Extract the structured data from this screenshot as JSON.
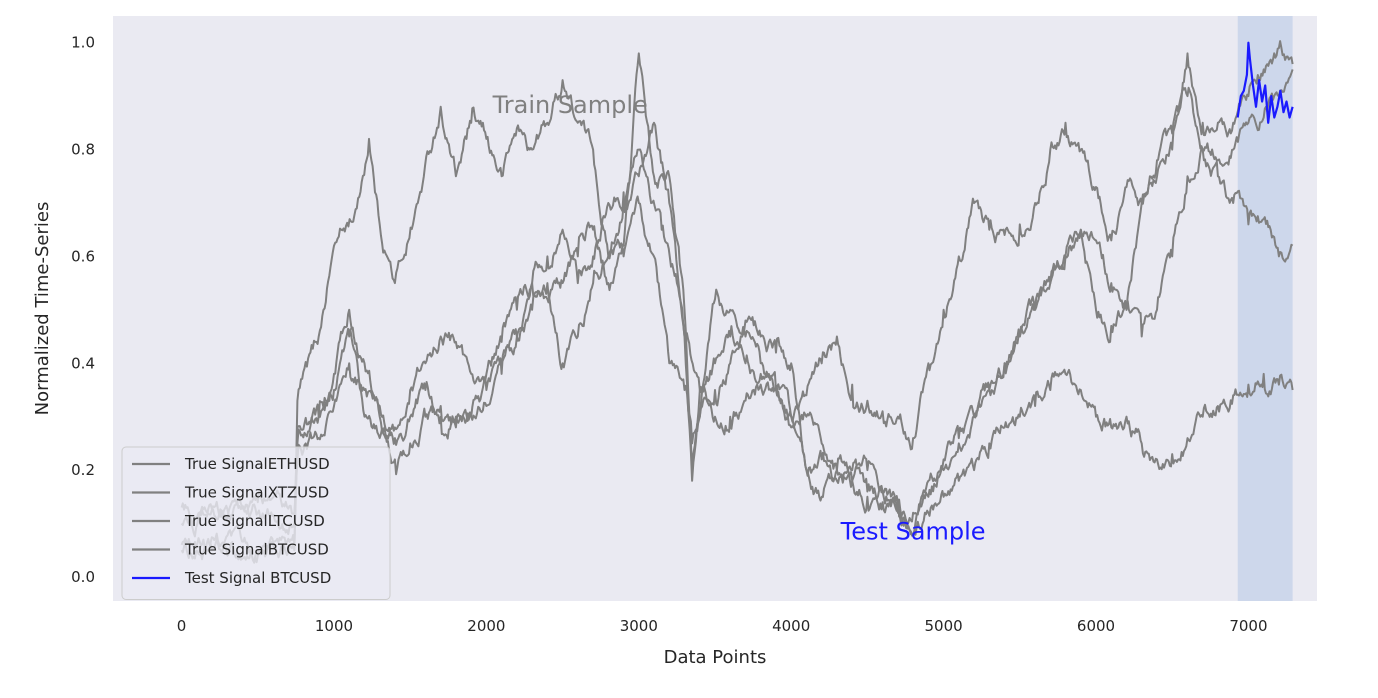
{
  "chart_data": {
    "type": "line",
    "title": "",
    "xlabel": "Data Points",
    "ylabel": "Normalized Time-Series",
    "xlim": [
      -450,
      7450
    ],
    "ylim": [
      -0.045,
      1.05
    ],
    "xticks": [
      0,
      1000,
      2000,
      3000,
      4000,
      5000,
      6000,
      7000
    ],
    "yticks": [
      0.0,
      0.2,
      0.4,
      0.6,
      0.8,
      1.0
    ],
    "xtick_labels": [
      "0",
      "1000",
      "2000",
      "3000",
      "4000",
      "5000",
      "6000",
      "7000"
    ],
    "ytick_labels": [
      "0.0",
      "0.2",
      "0.4",
      "0.6",
      "0.8",
      "1.0"
    ],
    "grid": false,
    "background": "#eaeaf2",
    "legend_position": "lower-left",
    "test_region": {
      "x_start": 6930,
      "x_end": 7290,
      "color": "#c8d4ea"
    },
    "annotations": [
      {
        "text": "Train Sample",
        "x": 2550,
        "y": 0.88,
        "color": "#808080"
      },
      {
        "text": "Test Sample",
        "x": 4800,
        "y": 0.085,
        "color": "#1a1aff"
      }
    ],
    "series": [
      {
        "name": "True SignalETHUSD",
        "color": "#808080",
        "x": [
          0,
          500,
          740,
          760,
          900,
          1000,
          1150,
          1230,
          1300,
          1400,
          1550,
          1700,
          1800,
          1900,
          2000,
          2100,
          2200,
          2300,
          2400,
          2500,
          2600,
          2700,
          2800,
          2900,
          3000,
          3050,
          3150,
          3250,
          3300,
          3400,
          3500,
          3600,
          3700,
          3800,
          3900,
          4000,
          4100,
          4200,
          4300,
          4400,
          4500,
          4600,
          4700,
          4800,
          4900,
          5000,
          5100,
          5200,
          5300,
          5400,
          5500,
          5600,
          5700,
          5800,
          5900,
          6000,
          6100,
          6200,
          6300,
          6400,
          6500,
          6600,
          6700,
          6800,
          6900,
          7000,
          7100,
          7200,
          7290
        ],
        "y": [
          0.05,
          0.04,
          0.05,
          0.33,
          0.45,
          0.62,
          0.69,
          0.82,
          0.66,
          0.55,
          0.7,
          0.88,
          0.75,
          0.85,
          0.82,
          0.75,
          0.84,
          0.8,
          0.85,
          0.93,
          0.85,
          0.8,
          0.6,
          0.7,
          0.8,
          0.75,
          0.65,
          0.55,
          0.45,
          0.35,
          0.3,
          0.3,
          0.33,
          0.36,
          0.35,
          0.3,
          0.34,
          0.4,
          0.45,
          0.36,
          0.33,
          0.31,
          0.3,
          0.26,
          0.4,
          0.5,
          0.6,
          0.7,
          0.65,
          0.64,
          0.66,
          0.7,
          0.8,
          0.85,
          0.8,
          0.73,
          0.63,
          0.73,
          0.7,
          0.78,
          0.83,
          0.9,
          0.8,
          0.75,
          0.7,
          0.66,
          0.67,
          0.6,
          0.62
        ]
      },
      {
        "name": "True SignalXTZUSD",
        "color": "#808080",
        "x": [
          0,
          500,
          740,
          760,
          900,
          1000,
          1100,
          1200,
          1300,
          1400,
          1500,
          1600,
          1700,
          1800,
          1900,
          2000,
          2100,
          2200,
          2300,
          2400,
          2500,
          2600,
          2700,
          2800,
          2900,
          3000,
          3100,
          3200,
          3300,
          3350,
          3400,
          3500,
          3600,
          3700,
          3800,
          3900,
          4000,
          4100,
          4200,
          4300,
          4400,
          4500,
          4600,
          4700,
          4800,
          4900,
          5000,
          5100,
          5200,
          5300,
          5400,
          5500,
          5600,
          5700,
          5800,
          5900,
          6000,
          6100,
          6200,
          6300,
          6400,
          6500,
          6600,
          6700,
          6800,
          6900,
          7000,
          7100,
          7200,
          7290
        ],
        "y": [
          0.06,
          0.05,
          0.06,
          0.25,
          0.3,
          0.35,
          0.45,
          0.3,
          0.26,
          0.28,
          0.35,
          0.4,
          0.45,
          0.44,
          0.38,
          0.38,
          0.44,
          0.5,
          0.55,
          0.55,
          0.4,
          0.45,
          0.55,
          0.6,
          0.62,
          0.98,
          0.75,
          0.75,
          0.5,
          0.2,
          0.3,
          0.52,
          0.5,
          0.48,
          0.45,
          0.42,
          0.4,
          0.2,
          0.15,
          0.2,
          0.2,
          0.16,
          0.14,
          0.12,
          0.08,
          0.15,
          0.2,
          0.25,
          0.3,
          0.35,
          0.4,
          0.45,
          0.5,
          0.55,
          0.6,
          0.65,
          0.5,
          0.47,
          0.5,
          0.7,
          0.75,
          0.8,
          0.98,
          0.85,
          0.85,
          0.85,
          0.9,
          0.95,
          0.99,
          0.96
        ]
      },
      {
        "name": "True SignalLTCUSD",
        "color": "#808080",
        "x": [
          0,
          500,
          740,
          760,
          900,
          1000,
          1100,
          1200,
          1300,
          1400,
          1500,
          1600,
          1700,
          1800,
          1900,
          2000,
          2100,
          2200,
          2300,
          2400,
          2500,
          2600,
          2700,
          2800,
          2900,
          3000,
          3100,
          3200,
          3300,
          3350,
          3400,
          3500,
          3600,
          3700,
          3800,
          3900,
          4000,
          4100,
          4200,
          4300,
          4400,
          4500,
          4600,
          4700,
          4800,
          4900,
          5000,
          5100,
          5200,
          5300,
          5400,
          5500,
          5600,
          5700,
          5800,
          5900,
          6000,
          6100,
          6200,
          6300,
          6400,
          6500,
          6600,
          6700,
          6800,
          6900,
          7000,
          7100,
          7200,
          7290
        ],
        "y": [
          0.1,
          0.12,
          0.1,
          0.28,
          0.3,
          0.38,
          0.5,
          0.4,
          0.32,
          0.26,
          0.3,
          0.35,
          0.3,
          0.3,
          0.3,
          0.35,
          0.4,
          0.45,
          0.55,
          0.6,
          0.65,
          0.55,
          0.6,
          0.7,
          0.72,
          0.75,
          0.85,
          0.7,
          0.45,
          0.18,
          0.35,
          0.4,
          0.45,
          0.4,
          0.38,
          0.35,
          0.3,
          0.2,
          0.22,
          0.18,
          0.18,
          0.2,
          0.16,
          0.14,
          0.12,
          0.18,
          0.22,
          0.26,
          0.3,
          0.35,
          0.4,
          0.45,
          0.5,
          0.55,
          0.6,
          0.65,
          0.63,
          0.55,
          0.5,
          0.45,
          0.5,
          0.6,
          0.75,
          0.8,
          0.78,
          0.8,
          0.85,
          0.86,
          0.9,
          0.95
        ]
      },
      {
        "name": "True SignalBTCUSD",
        "color": "#808080",
        "x": [
          0,
          500,
          740,
          760,
          900,
          1000,
          1100,
          1200,
          1300,
          1400,
          1500,
          1600,
          1700,
          1800,
          1900,
          2000,
          2100,
          2200,
          2300,
          2400,
          2500,
          2600,
          2700,
          2800,
          2900,
          3000,
          3100,
          3200,
          3300,
          3350,
          3400,
          3500,
          3600,
          3700,
          3800,
          3900,
          4000,
          4100,
          4200,
          4300,
          4400,
          4500,
          4600,
          4700,
          4800,
          4900,
          5000,
          5100,
          5200,
          5300,
          5400,
          5500,
          5600,
          5700,
          5800,
          5900,
          6000,
          6100,
          6200,
          6300,
          6400,
          6500,
          6600,
          6700,
          6800,
          6900,
          7000,
          7100,
          7200,
          7290
        ],
        "y": [
          0.13,
          0.14,
          0.12,
          0.22,
          0.26,
          0.32,
          0.4,
          0.35,
          0.3,
          0.22,
          0.25,
          0.3,
          0.32,
          0.28,
          0.3,
          0.32,
          0.38,
          0.45,
          0.5,
          0.52,
          0.55,
          0.6,
          0.65,
          0.55,
          0.6,
          0.7,
          0.6,
          0.4,
          0.35,
          0.25,
          0.3,
          0.35,
          0.4,
          0.45,
          0.4,
          0.35,
          0.28,
          0.3,
          0.25,
          0.2,
          0.18,
          0.15,
          0.16,
          0.14,
          0.08,
          0.12,
          0.15,
          0.18,
          0.2,
          0.25,
          0.28,
          0.3,
          0.32,
          0.35,
          0.38,
          0.35,
          0.3,
          0.28,
          0.3,
          0.25,
          0.22,
          0.23,
          0.26,
          0.3,
          0.32,
          0.34,
          0.36,
          0.38,
          0.36,
          0.35
        ]
      },
      {
        "name": "Test Signal BTCUSD",
        "color": "#1a1aff",
        "x": [
          6930,
          6950,
          6970,
          6990,
          7000,
          7010,
          7030,
          7050,
          7070,
          7090,
          7110,
          7130,
          7150,
          7170,
          7190,
          7210,
          7230,
          7250,
          7270,
          7290
        ],
        "y": [
          0.86,
          0.9,
          0.91,
          0.94,
          1.0,
          0.97,
          0.92,
          0.88,
          0.93,
          0.89,
          0.92,
          0.85,
          0.9,
          0.86,
          0.88,
          0.91,
          0.87,
          0.89,
          0.86,
          0.88
        ]
      }
    ]
  }
}
